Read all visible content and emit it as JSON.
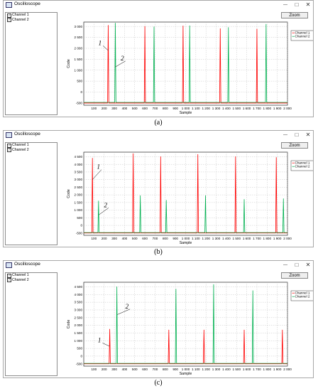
{
  "panels": [
    {
      "window_title": "Oscilloscope",
      "zoom_label": "Zoom",
      "channels": [
        "Channel 1",
        "Channel 2"
      ],
      "caption": "(a)",
      "chart_data": {
        "type": "line",
        "xlabel": "Sample",
        "ylabel": "Code",
        "xlim": [
          0,
          2000
        ],
        "ylim": [
          -600,
          3200
        ],
        "xticks": [
          100,
          200,
          300,
          400,
          500,
          600,
          700,
          800,
          900,
          1000,
          1100,
          1200,
          1300,
          1400,
          1500,
          1600,
          1700,
          1800,
          1900,
          2000
        ],
        "yticks": [
          -500,
          0,
          500,
          1000,
          1500,
          2000,
          2500,
          3000
        ],
        "xtick_labels": [
          "100",
          "200",
          "300",
          "400",
          "500",
          "600",
          "700",
          "800",
          "900",
          "1 000",
          "1 100",
          "1 200",
          "1 300",
          "1 400",
          "1 500",
          "1 600",
          "1 700",
          "1 800",
          "1 900",
          "2 000"
        ],
        "ytick_labels": [
          "-500",
          "0",
          "500",
          "1 000",
          "1 500",
          "2 000",
          "2 500",
          "3 000"
        ],
        "baseline": [
          -500,
          -470
        ],
        "series": [
          {
            "name": "Channel 1",
            "color": "#ff0000",
            "peaks": [
              {
                "x": 240,
                "y": 3050
              },
              {
                "x": 600,
                "y": 3000
              },
              {
                "x": 975,
                "y": 3020
              },
              {
                "x": 1340,
                "y": 2900
              },
              {
                "x": 1700,
                "y": 2880
              }
            ]
          },
          {
            "name": "Channel 2",
            "color": "#00b050",
            "peaks": [
              {
                "x": 310,
                "y": 3150
              },
              {
                "x": 690,
                "y": 2980
              },
              {
                "x": 1040,
                "y": 3030
              },
              {
                "x": 1420,
                "y": 2950
              },
              {
                "x": 1790,
                "y": 3100
              }
            ]
          }
        ],
        "legend": [
          "Channel 1",
          "Channel 2"
        ],
        "legend_position": "right",
        "grid": true,
        "annotations": [
          {
            "label": "1",
            "x": 175,
            "y": 2150,
            "target_x": 240,
            "target_y": 1900
          },
          {
            "label": "2",
            "x": 395,
            "y": 1450,
            "target_x": 310,
            "target_y": 1150
          }
        ]
      }
    },
    {
      "window_title": "Oscilloscope",
      "zoom_label": "Zoom",
      "channels": [
        "Channel 1",
        "Channel 2"
      ],
      "caption": "(b)",
      "chart_data": {
        "type": "line",
        "xlabel": "Sample",
        "ylabel": "Code",
        "xlim": [
          0,
          2000
        ],
        "ylim": [
          -650,
          4800
        ],
        "xticks": [
          100,
          200,
          300,
          400,
          500,
          600,
          700,
          800,
          900,
          1000,
          1100,
          1200,
          1300,
          1400,
          1500,
          1600,
          1700,
          1800,
          1900,
          2000
        ],
        "yticks": [
          -500,
          0,
          500,
          1000,
          1500,
          2000,
          2500,
          3000,
          3500,
          4000,
          4500
        ],
        "xtick_labels": [
          "100",
          "200",
          "300",
          "400",
          "500",
          "600",
          "700",
          "800",
          "900",
          "1 000",
          "1 100",
          "1 200",
          "1 300",
          "1 400",
          "1 500",
          "1 600",
          "1 700",
          "1 800",
          "1 900",
          "2 000"
        ],
        "ytick_labels": [
          "-500",
          "0",
          "500",
          "1 000",
          "1 500",
          "2 000",
          "2 500",
          "3 000",
          "3 500",
          "4 000",
          "4 500"
        ],
        "baseline": [
          -500,
          -470
        ],
        "series": [
          {
            "name": "Channel 1",
            "color": "#ff0000",
            "peaks": [
              {
                "x": 85,
                "y": 4400
              },
              {
                "x": 485,
                "y": 4700
              },
              {
                "x": 755,
                "y": 4500
              },
              {
                "x": 1120,
                "y": 4650
              },
              {
                "x": 1490,
                "y": 4500
              },
              {
                "x": 1890,
                "y": 4450
              }
            ]
          },
          {
            "name": "Channel 2",
            "color": "#00b050",
            "peaks": [
              {
                "x": 145,
                "y": 1600
              },
              {
                "x": 555,
                "y": 1950
              },
              {
                "x": 810,
                "y": 1650
              },
              {
                "x": 1195,
                "y": 1950
              },
              {
                "x": 1575,
                "y": 1700
              },
              {
                "x": 1960,
                "y": 1750
              }
            ]
          }
        ],
        "legend": [
          "Channel 1",
          "Channel 2"
        ],
        "legend_position": "right",
        "grid": true,
        "annotations": [
          {
            "label": "1",
            "x": 160,
            "y": 3700,
            "target_x": 85,
            "target_y": 3000
          },
          {
            "label": "2",
            "x": 230,
            "y": 1200,
            "target_x": 150,
            "target_y": 700
          }
        ]
      }
    },
    {
      "window_title": "Oscilloscope",
      "zoom_label": "Zoom",
      "channels": [
        "Channel 1",
        "Channel 2"
      ],
      "caption": "(c)",
      "chart_data": {
        "type": "line",
        "xlabel": "Sample",
        "ylabel": "Code",
        "xlim": [
          0,
          2000
        ],
        "ylim": [
          -650,
          4800
        ],
        "xticks": [
          100,
          200,
          300,
          400,
          500,
          600,
          700,
          800,
          900,
          1000,
          1100,
          1200,
          1300,
          1400,
          1500,
          1600,
          1700,
          1800,
          1900,
          2000
        ],
        "yticks": [
          -500,
          0,
          500,
          1000,
          1500,
          2000,
          2500,
          3000,
          3500,
          4000,
          4500
        ],
        "xtick_labels": [
          "100",
          "200",
          "300",
          "400",
          "500",
          "600",
          "700",
          "800",
          "900",
          "1 000",
          "1 100",
          "1 200",
          "1 300",
          "1 400",
          "1 500",
          "1 600",
          "1 700",
          "1 800",
          "1 900",
          "2 000"
        ],
        "ytick_labels": [
          "-500",
          "0",
          "500",
          "1 000",
          "1 500",
          "2 000",
          "2 500",
          "3 000",
          "3 500",
          "4 000",
          "4 500"
        ],
        "baseline": [
          -500,
          -470
        ],
        "series": [
          {
            "name": "Channel 1",
            "color": "#ff0000",
            "peaks": [
              {
                "x": 255,
                "y": 1750
              },
              {
                "x": 835,
                "y": 1700
              },
              {
                "x": 1180,
                "y": 1700
              },
              {
                "x": 1575,
                "y": 1700
              },
              {
                "x": 1950,
                "y": 1700
              }
            ]
          },
          {
            "name": "Channel 2",
            "color": "#00b050",
            "peaks": [
              {
                "x": 325,
                "y": 4500
              },
              {
                "x": 905,
                "y": 4350
              },
              {
                "x": 1275,
                "y": 4650
              },
              {
                "x": 1660,
                "y": 4250
              }
            ]
          }
        ],
        "legend": [
          "Channel 1",
          "Channel 2"
        ],
        "legend_position": "right",
        "grid": true,
        "annotations": [
          {
            "label": "1",
            "x": 170,
            "y": 900,
            "target_x": 250,
            "target_y": 650
          },
          {
            "label": "2",
            "x": 440,
            "y": 3100,
            "target_x": 330,
            "target_y": 2700
          }
        ]
      }
    }
  ]
}
